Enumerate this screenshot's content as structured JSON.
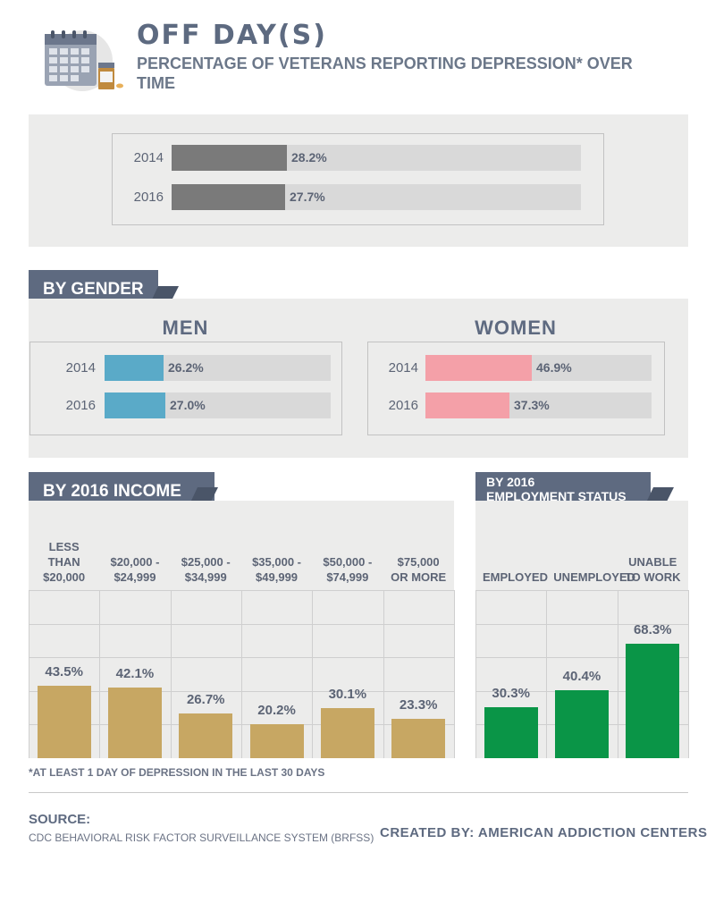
{
  "header": {
    "title": "OFF DAY(S)",
    "subtitle": "PERCENTAGE OF VETERANS REPORTING DEPRESSION* OVER TIME"
  },
  "icons": [
    "calendar-icon",
    "pill-bottle-icon"
  ],
  "sections": {
    "gender": "BY GENDER",
    "men": "MEN",
    "women": "WOMEN",
    "income": "BY 2016 INCOME",
    "employment_line1": "BY 2016",
    "employment_line2": "EMPLOYMENT STATUS"
  },
  "colors": {
    "overall": "#7a7a7a",
    "men": "#5aaac8",
    "women": "#f4a0a8",
    "income": "#c7a763",
    "employment": "#0a9547",
    "tag": "#5e6a80"
  },
  "chart_data": [
    {
      "type": "bar",
      "orientation": "horizontal",
      "categories": [
        "2014",
        "2016"
      ],
      "values": [
        28.2,
        27.7
      ],
      "labels": [
        "28.2%",
        "27.7%"
      ],
      "xlim": [
        0,
        100
      ]
    },
    {
      "type": "bar",
      "orientation": "horizontal",
      "title": "MEN",
      "categories": [
        "2014",
        "2016"
      ],
      "values": [
        26.2,
        27.0
      ],
      "labels": [
        "26.2%",
        "27.0%"
      ],
      "xlim": [
        0,
        100
      ]
    },
    {
      "type": "bar",
      "orientation": "horizontal",
      "title": "WOMEN",
      "categories": [
        "2014",
        "2016"
      ],
      "values": [
        46.9,
        37.3
      ],
      "labels": [
        "46.9%",
        "37.3%"
      ],
      "xlim": [
        0,
        100
      ]
    },
    {
      "type": "bar",
      "title": "BY 2016 INCOME",
      "categories": [
        "LESS THAN $20,000",
        "$20,000 - $24,999",
        "$25,000 - $34,999",
        "$35,000 - $49,999",
        "$50,000 - $74,999",
        "$75,000 OR MORE"
      ],
      "values": [
        43.5,
        42.1,
        26.7,
        20.2,
        30.1,
        23.3
      ],
      "labels": [
        "43.5%",
        "42.1%",
        "26.7%",
        "20.2%",
        "30.1%",
        "23.3%"
      ],
      "ylim": [
        0,
        100
      ]
    },
    {
      "type": "bar",
      "title": "BY 2016 EMPLOYMENT STATUS",
      "categories": [
        "EMPLOYED",
        "UNEMPLOYED",
        "UNABLE TO WORK"
      ],
      "values": [
        30.3,
        40.4,
        68.3
      ],
      "labels": [
        "30.3%",
        "40.4%",
        "68.3%"
      ],
      "ylim": [
        0,
        100
      ]
    }
  ],
  "footnote": "*AT LEAST 1 DAY OF DEPRESSION IN THE LAST 30 DAYS",
  "source": {
    "heading": "SOURCE:",
    "text": "CDC BEHAVIORAL RISK FACTOR SURVEILLANCE SYSTEM (BRFSS)"
  },
  "credit": "CREATED BY: AMERICAN ADDICTION CENTERS"
}
